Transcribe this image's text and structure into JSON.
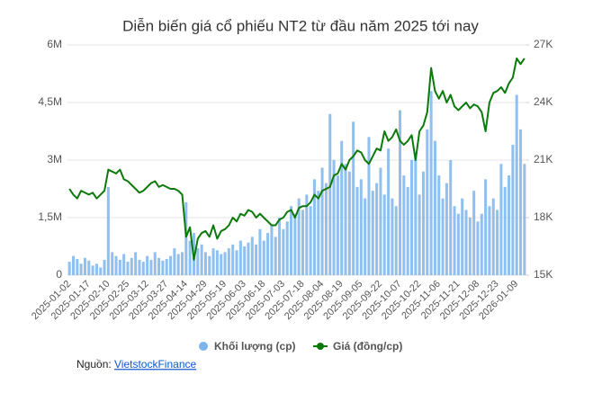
{
  "chart_data": {
    "type": "combo",
    "title": "Diễn biến giá cổ phiếu NT2 từ đầu năm 2025 tới nay",
    "categories": [
      "2025-01-02",
      null,
      null,
      null,
      null,
      "2025-01-17",
      null,
      null,
      null,
      null,
      "2025-02-10",
      null,
      null,
      null,
      null,
      "2025-02-25",
      null,
      null,
      null,
      null,
      "2025-03-12",
      null,
      null,
      null,
      null,
      "2025-03-27",
      null,
      null,
      null,
      null,
      "2025-04-14",
      null,
      null,
      null,
      null,
      "2025-04-29",
      null,
      null,
      null,
      null,
      "2025-05-19",
      null,
      null,
      null,
      null,
      "2025-06-03",
      null,
      null,
      null,
      null,
      "2025-06-18",
      null,
      null,
      null,
      null,
      "2025-07-03",
      null,
      null,
      null,
      null,
      "2025-07-18",
      null,
      null,
      null,
      null,
      "2025-08-04",
      null,
      null,
      null,
      null,
      "2025-08-19",
      null,
      null,
      null,
      null,
      "2025-09-05",
      null,
      null,
      null,
      null,
      "2025-09-22",
      null,
      null,
      null,
      null,
      "2025-10-07",
      null,
      null,
      null,
      null,
      "2025-10-22",
      null,
      null,
      null,
      null,
      "2025-11-06",
      null,
      null,
      null,
      null,
      "2025-11-21",
      null,
      null,
      null,
      null,
      "2025-12-08",
      null,
      null,
      null,
      null,
      "2025-12-23",
      null,
      null,
      null,
      null,
      "2026-01-09",
      null,
      null
    ],
    "series": [
      {
        "name": "Khối lượng (cp)",
        "type": "bar",
        "color": "#7cb5ec",
        "values": [
          350000,
          500000,
          420000,
          300000,
          450000,
          380000,
          250000,
          300000,
          200000,
          400000,
          2300000,
          600000,
          500000,
          400000,
          550000,
          350000,
          450000,
          600000,
          400000,
          350000,
          500000,
          400000,
          600000,
          450000,
          380000,
          420000,
          500000,
          700000,
          550000,
          600000,
          1900000,
          900000,
          1100000,
          700000,
          800000,
          600000,
          500000,
          700000,
          650000,
          550000,
          600000,
          700000,
          800000,
          650000,
          900000,
          750000,
          850000,
          1000000,
          800000,
          1200000,
          900000,
          1100000,
          1300000,
          1000000,
          1500000,
          1200000,
          1400000,
          1800000,
          1600000,
          2000000,
          1700000,
          2100000,
          1800000,
          2500000,
          2200000,
          2800000,
          2400000,
          4200000,
          3000000,
          2600000,
          3500000,
          2900000,
          2700000,
          4000000,
          2300000,
          2500000,
          2000000,
          3600000,
          2200000,
          2400000,
          2800000,
          2100000,
          3300000,
          2000000,
          1800000,
          4300000,
          2600000,
          2300000,
          3000000,
          3200000,
          2100000,
          2700000,
          3800000,
          4800000,
          3500000,
          2600000,
          2000000,
          2400000,
          3000000,
          1800000,
          1600000,
          2000000,
          1700000,
          1500000,
          2200000,
          1400000,
          1600000,
          2500000,
          1800000,
          2000000,
          1700000,
          2900000,
          2300000,
          2600000,
          3400000,
          4700000,
          3800000,
          2900000
        ]
      },
      {
        "name": "Giá (đồng/cp)",
        "type": "line",
        "axis": "y2",
        "color": "#0b7a0b",
        "values": [
          19500,
          19200,
          19000,
          19400,
          19300,
          19200,
          19300,
          19000,
          19200,
          19400,
          20500,
          20400,
          20300,
          20500,
          20000,
          19900,
          19700,
          19500,
          19300,
          19400,
          19600,
          19800,
          19900,
          19600,
          19700,
          19600,
          19500,
          19500,
          19400,
          19200,
          17000,
          17500,
          15800,
          16900,
          17200,
          17300,
          17000,
          17600,
          16900,
          17300,
          17400,
          17600,
          18000,
          17800,
          18200,
          18100,
          18400,
          18300,
          18000,
          18200,
          18000,
          17800,
          17600,
          17600,
          17900,
          18000,
          18300,
          18400,
          18000,
          18500,
          18600,
          18600,
          18800,
          19200,
          19000,
          19400,
          19500,
          19600,
          20200,
          20300,
          20800,
          20500,
          21000,
          21200,
          21500,
          21400,
          21000,
          20800,
          21200,
          21600,
          21500,
          22500,
          22000,
          22200,
          22600,
          22000,
          21800,
          22000,
          22300,
          21000,
          22500,
          22800,
          23500,
          25800,
          24600,
          24200,
          24600,
          24000,
          24400,
          23800,
          23600,
          23800,
          24000,
          23700,
          23900,
          23800,
          23500,
          22500,
          24000,
          24500,
          24600,
          24800,
          24500,
          25000,
          25300,
          26300,
          26000,
          26300
        ]
      }
    ],
    "ylim": [
      0,
      6000000
    ],
    "yticks": [
      0,
      {
        "value": 1500000,
        "label": "1,5M"
      },
      {
        "value": 3000000,
        "label": "3M"
      },
      {
        "value": 4500000,
        "label": "4,5M"
      },
      {
        "value": 6000000,
        "label": "6M"
      }
    ],
    "y2lim": [
      15000,
      27000
    ],
    "y2ticks": [
      {
        "value": 15000,
        "label": "15K"
      },
      {
        "value": 18000,
        "label": "18K"
      },
      {
        "value": 21000,
        "label": "21K"
      },
      {
        "value": 24000,
        "label": "24K"
      },
      {
        "value": 27000,
        "label": "27K"
      }
    ],
    "grid": true
  },
  "source": {
    "label": "Nguồn:",
    "link": "VietstockFinance"
  }
}
